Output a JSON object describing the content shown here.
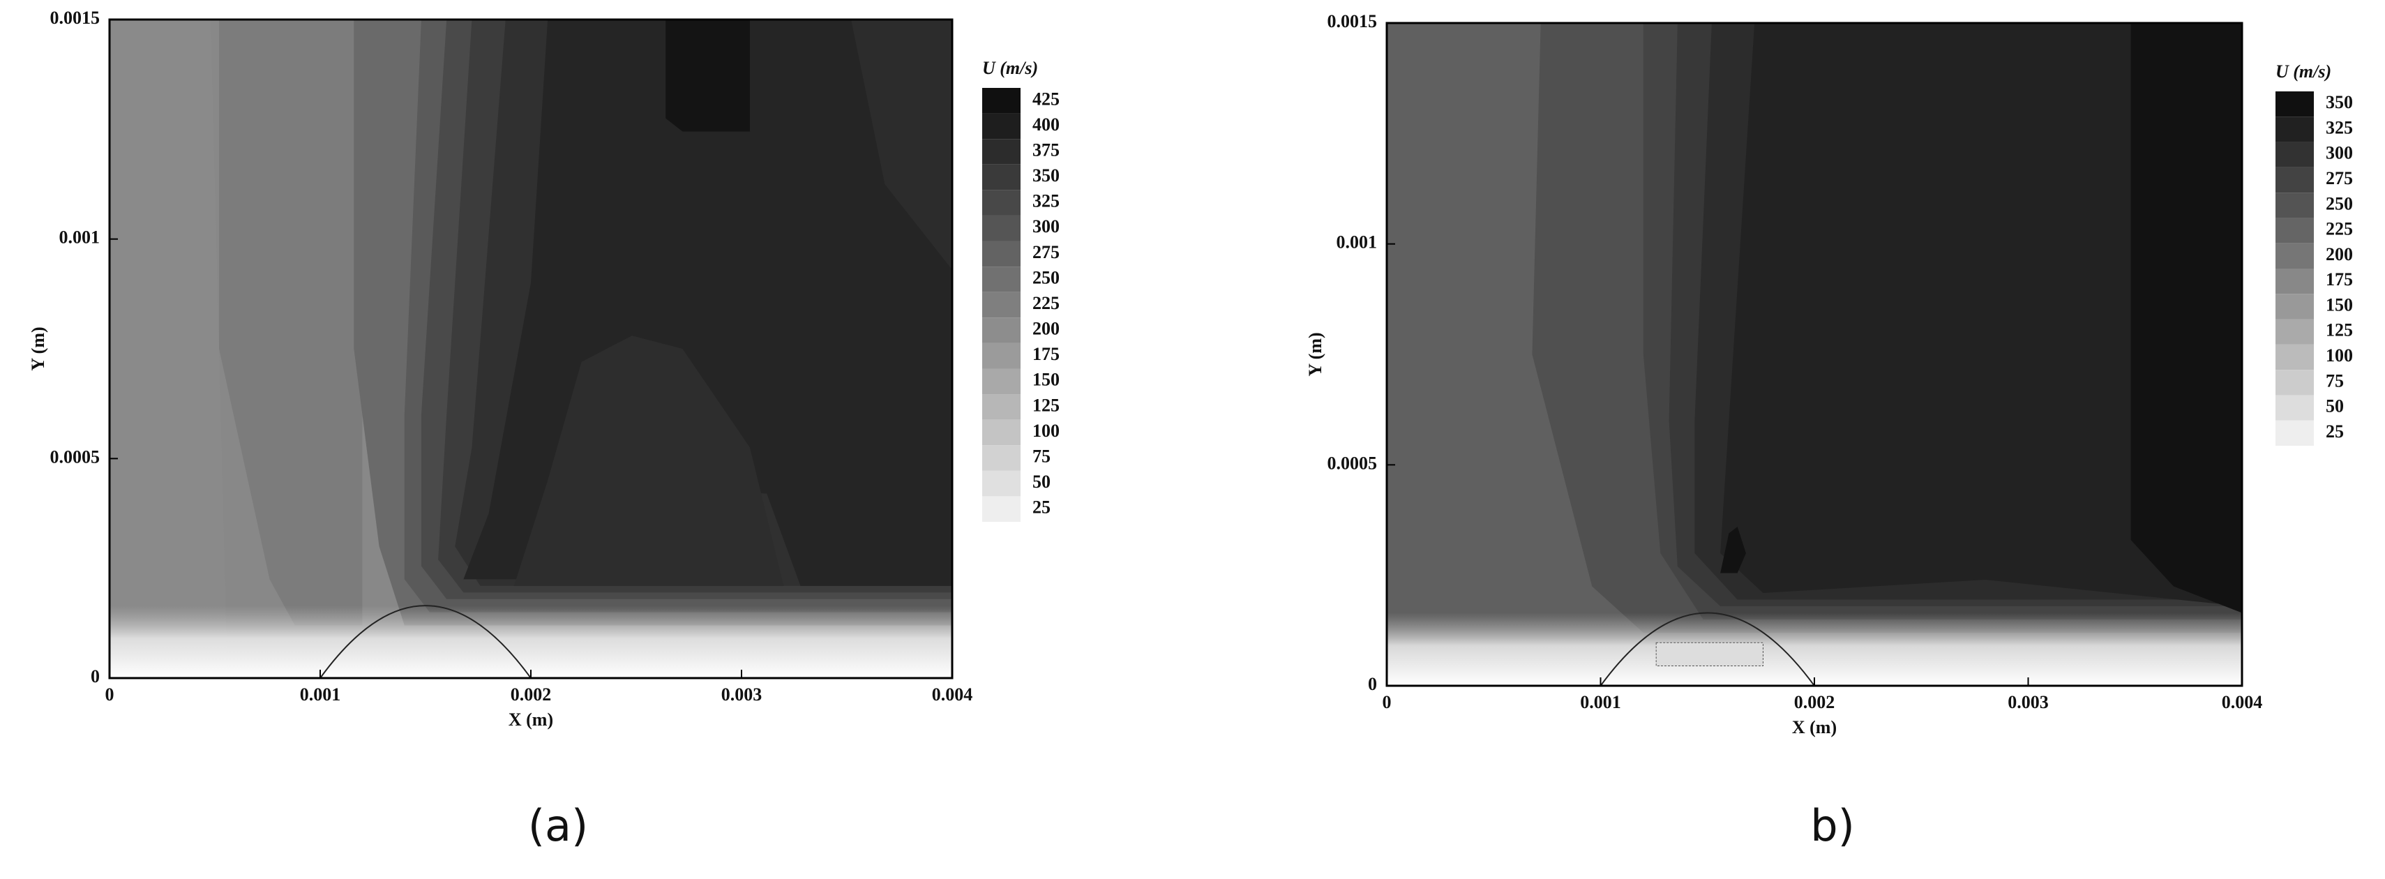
{
  "chart_data": [
    {
      "type": "contour",
      "caption": "(a)",
      "colorbar_title": "U (m/s)",
      "xlabel": "X (m)",
      "ylabel": "Y (m)",
      "xlim": [
        0,
        0.004
      ],
      "ylim": [
        0,
        0.0015
      ],
      "xticks": [
        0,
        0.001,
        0.002,
        0.003,
        0.004
      ],
      "yticks": [
        0,
        0.0005,
        0.001,
        0.0015
      ],
      "levels": [
        425,
        400,
        375,
        350,
        325,
        300,
        275,
        250,
        225,
        200,
        175,
        150,
        125,
        100,
        75,
        50,
        25
      ]
    },
    {
      "type": "contour",
      "caption": "b)",
      "colorbar_title": "U (m/s)",
      "xlabel": "X (m)",
      "ylabel": "Y (m)",
      "xlim": [
        0,
        0.004
      ],
      "ylim": [
        0,
        0.0015
      ],
      "xticks": [
        0,
        0.001,
        0.002,
        0.003,
        0.004
      ],
      "yticks": [
        0,
        0.0005,
        0.001,
        0.0015
      ],
      "levels": [
        350,
        325,
        300,
        275,
        250,
        225,
        200,
        175,
        150,
        125,
        100,
        75,
        50,
        25
      ]
    }
  ]
}
